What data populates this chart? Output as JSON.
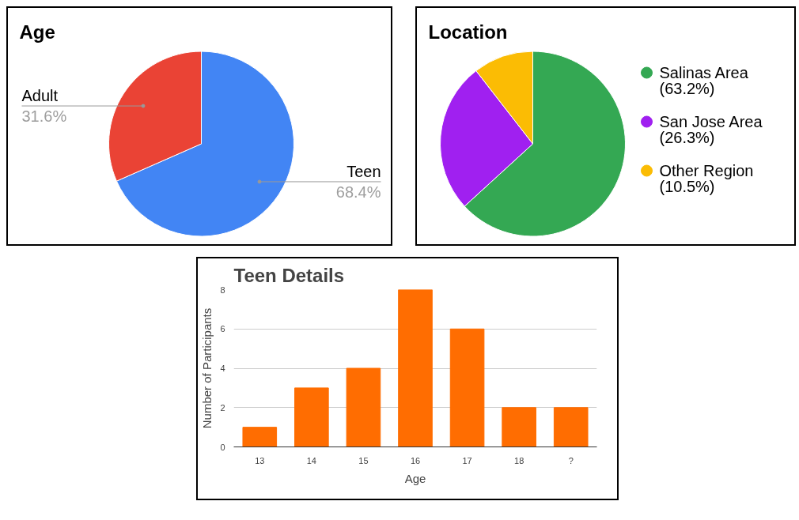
{
  "chart_data": [
    {
      "type": "pie",
      "title": "Age",
      "categories": [
        "Teen",
        "Adult"
      ],
      "values": [
        68.4,
        31.6
      ],
      "colors": [
        "#4285f4",
        "#ea4335"
      ],
      "value_labels": [
        "68.4%",
        "31.6%"
      ],
      "legend": false
    },
    {
      "type": "pie",
      "title": "Location",
      "categories": [
        "Salinas Area",
        "San Jose Area",
        "Other Region"
      ],
      "values": [
        63.2,
        26.3,
        10.5
      ],
      "colors": [
        "#34a853",
        "#a020f0",
        "#fbbc04"
      ],
      "value_labels": [
        "(63.2%)",
        "(26.3%)",
        "(10.5%)"
      ],
      "legend": "right"
    },
    {
      "type": "bar",
      "title": "Teen Details",
      "xlabel": "Age",
      "ylabel": "Number of Participants",
      "categories": [
        "13",
        "14",
        "15",
        "16",
        "17",
        "18",
        "?"
      ],
      "values": [
        1,
        3,
        4,
        8,
        6,
        2,
        2
      ],
      "color": "#ff6d01",
      "ylim": [
        0,
        8
      ],
      "yticks": [
        0,
        2,
        4,
        6,
        8
      ],
      "grid": "y"
    }
  ]
}
